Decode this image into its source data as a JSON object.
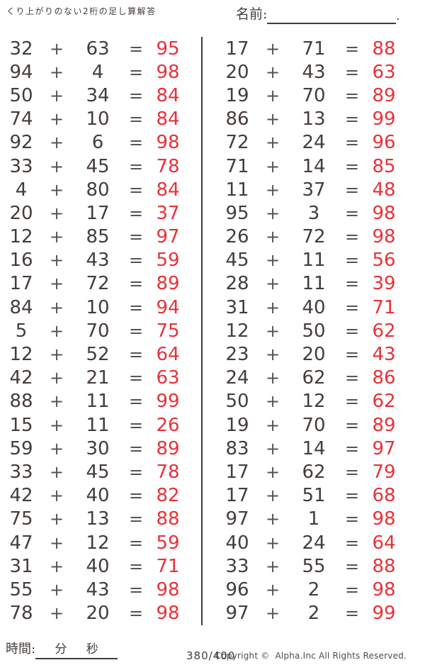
{
  "title": "くり上がりのない2桁の足し算解答",
  "name": {
    "label": "名前:",
    "period": "."
  },
  "operators": {
    "plus": "+",
    "equals": "="
  },
  "problems": {
    "left": [
      {
        "a": "32",
        "b": "63",
        "ans": "95"
      },
      {
        "a": "94",
        "b": "4",
        "ans": "98"
      },
      {
        "a": "50",
        "b": "34",
        "ans": "84"
      },
      {
        "a": "74",
        "b": "10",
        "ans": "84"
      },
      {
        "a": "92",
        "b": "6",
        "ans": "98"
      },
      {
        "a": "33",
        "b": "45",
        "ans": "78"
      },
      {
        "a": "4",
        "b": "80",
        "ans": "84"
      },
      {
        "a": "20",
        "b": "17",
        "ans": "37"
      },
      {
        "a": "12",
        "b": "85",
        "ans": "97"
      },
      {
        "a": "16",
        "b": "43",
        "ans": "59"
      },
      {
        "a": "17",
        "b": "72",
        "ans": "89"
      },
      {
        "a": "84",
        "b": "10",
        "ans": "94"
      },
      {
        "a": "5",
        "b": "70",
        "ans": "75"
      },
      {
        "a": "12",
        "b": "52",
        "ans": "64"
      },
      {
        "a": "42",
        "b": "21",
        "ans": "63"
      },
      {
        "a": "88",
        "b": "11",
        "ans": "99"
      },
      {
        "a": "15",
        "b": "11",
        "ans": "26"
      },
      {
        "a": "59",
        "b": "30",
        "ans": "89"
      },
      {
        "a": "33",
        "b": "45",
        "ans": "78"
      },
      {
        "a": "42",
        "b": "40",
        "ans": "82"
      },
      {
        "a": "75",
        "b": "13",
        "ans": "88"
      },
      {
        "a": "47",
        "b": "12",
        "ans": "59"
      },
      {
        "a": "31",
        "b": "40",
        "ans": "71"
      },
      {
        "a": "55",
        "b": "43",
        "ans": "98"
      },
      {
        "a": "78",
        "b": "20",
        "ans": "98"
      }
    ],
    "right": [
      {
        "a": "17",
        "b": "71",
        "ans": "88"
      },
      {
        "a": "20",
        "b": "43",
        "ans": "63"
      },
      {
        "a": "19",
        "b": "70",
        "ans": "89"
      },
      {
        "a": "86",
        "b": "13",
        "ans": "99"
      },
      {
        "a": "72",
        "b": "24",
        "ans": "96"
      },
      {
        "a": "71",
        "b": "14",
        "ans": "85"
      },
      {
        "a": "11",
        "b": "37",
        "ans": "48"
      },
      {
        "a": "95",
        "b": "3",
        "ans": "98"
      },
      {
        "a": "26",
        "b": "72",
        "ans": "98"
      },
      {
        "a": "45",
        "b": "11",
        "ans": "56"
      },
      {
        "a": "28",
        "b": "11",
        "ans": "39"
      },
      {
        "a": "31",
        "b": "40",
        "ans": "71"
      },
      {
        "a": "12",
        "b": "50",
        "ans": "62"
      },
      {
        "a": "23",
        "b": "20",
        "ans": "43"
      },
      {
        "a": "24",
        "b": "62",
        "ans": "86"
      },
      {
        "a": "50",
        "b": "12",
        "ans": "62"
      },
      {
        "a": "19",
        "b": "70",
        "ans": "89"
      },
      {
        "a": "83",
        "b": "14",
        "ans": "97"
      },
      {
        "a": "17",
        "b": "62",
        "ans": "79"
      },
      {
        "a": "17",
        "b": "51",
        "ans": "68"
      },
      {
        "a": "97",
        "b": "1",
        "ans": "98"
      },
      {
        "a": "40",
        "b": "24",
        "ans": "64"
      },
      {
        "a": "33",
        "b": "55",
        "ans": "88"
      },
      {
        "a": "96",
        "b": "2",
        "ans": "98"
      },
      {
        "a": "97",
        "b": "2",
        "ans": "99"
      }
    ]
  },
  "footer": {
    "time_label": "時間:",
    "minutes_label": "分",
    "seconds_label": "秒",
    "page_indicator": "380/400",
    "copyright": "Copyright ©  Alpha.Inc All Rights Reserved."
  },
  "colors": {
    "ink": "#443d3a",
    "answer_red": "#e73238"
  }
}
